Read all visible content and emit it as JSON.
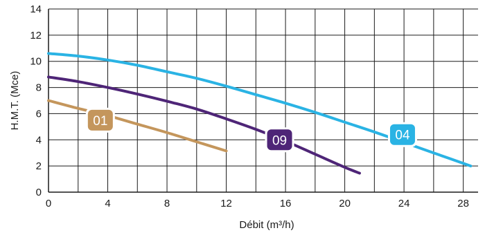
{
  "chart_data": {
    "type": "line",
    "xlabel": "Débit (m³/h)",
    "ylabel": "H.M.T. (Mce)",
    "xlim": [
      0,
      29
    ],
    "ylim": [
      0,
      14
    ],
    "xticks": [
      0,
      4,
      8,
      12,
      16,
      20,
      24,
      28
    ],
    "yticks": [
      0,
      2,
      4,
      6,
      8,
      10,
      12,
      14
    ],
    "grid": true,
    "series": [
      {
        "name": "01",
        "color": "#c4965c",
        "x": [
          0,
          2,
          4,
          6,
          8,
          10,
          12
        ],
        "y": [
          7.0,
          6.4,
          5.85,
          5.2,
          4.55,
          3.85,
          3.15
        ]
      },
      {
        "name": "09",
        "color": "#4e2577",
        "x": [
          0,
          2,
          4,
          6,
          8,
          10,
          12,
          14,
          16,
          18,
          20,
          21
        ],
        "y": [
          8.8,
          8.45,
          8.0,
          7.5,
          6.95,
          6.35,
          5.6,
          4.8,
          3.9,
          2.9,
          1.9,
          1.45
        ]
      },
      {
        "name": "04",
        "color": "#2ab3e4",
        "x": [
          0,
          2,
          4,
          6,
          8,
          10,
          12,
          14,
          16,
          18,
          20,
          22,
          24,
          26,
          28.5
        ],
        "y": [
          10.6,
          10.4,
          10.1,
          9.7,
          9.2,
          8.7,
          8.1,
          7.45,
          6.8,
          6.1,
          5.35,
          4.6,
          3.8,
          3.0,
          2.0
        ]
      }
    ],
    "labels": [
      {
        "text": "01",
        "series": "01",
        "x": 3.5,
        "y": 5.5
      },
      {
        "text": "09",
        "series": "09",
        "x": 15.6,
        "y": 4.0
      },
      {
        "text": "04",
        "series": "04",
        "x": 23.9,
        "y": 4.4
      }
    ]
  }
}
